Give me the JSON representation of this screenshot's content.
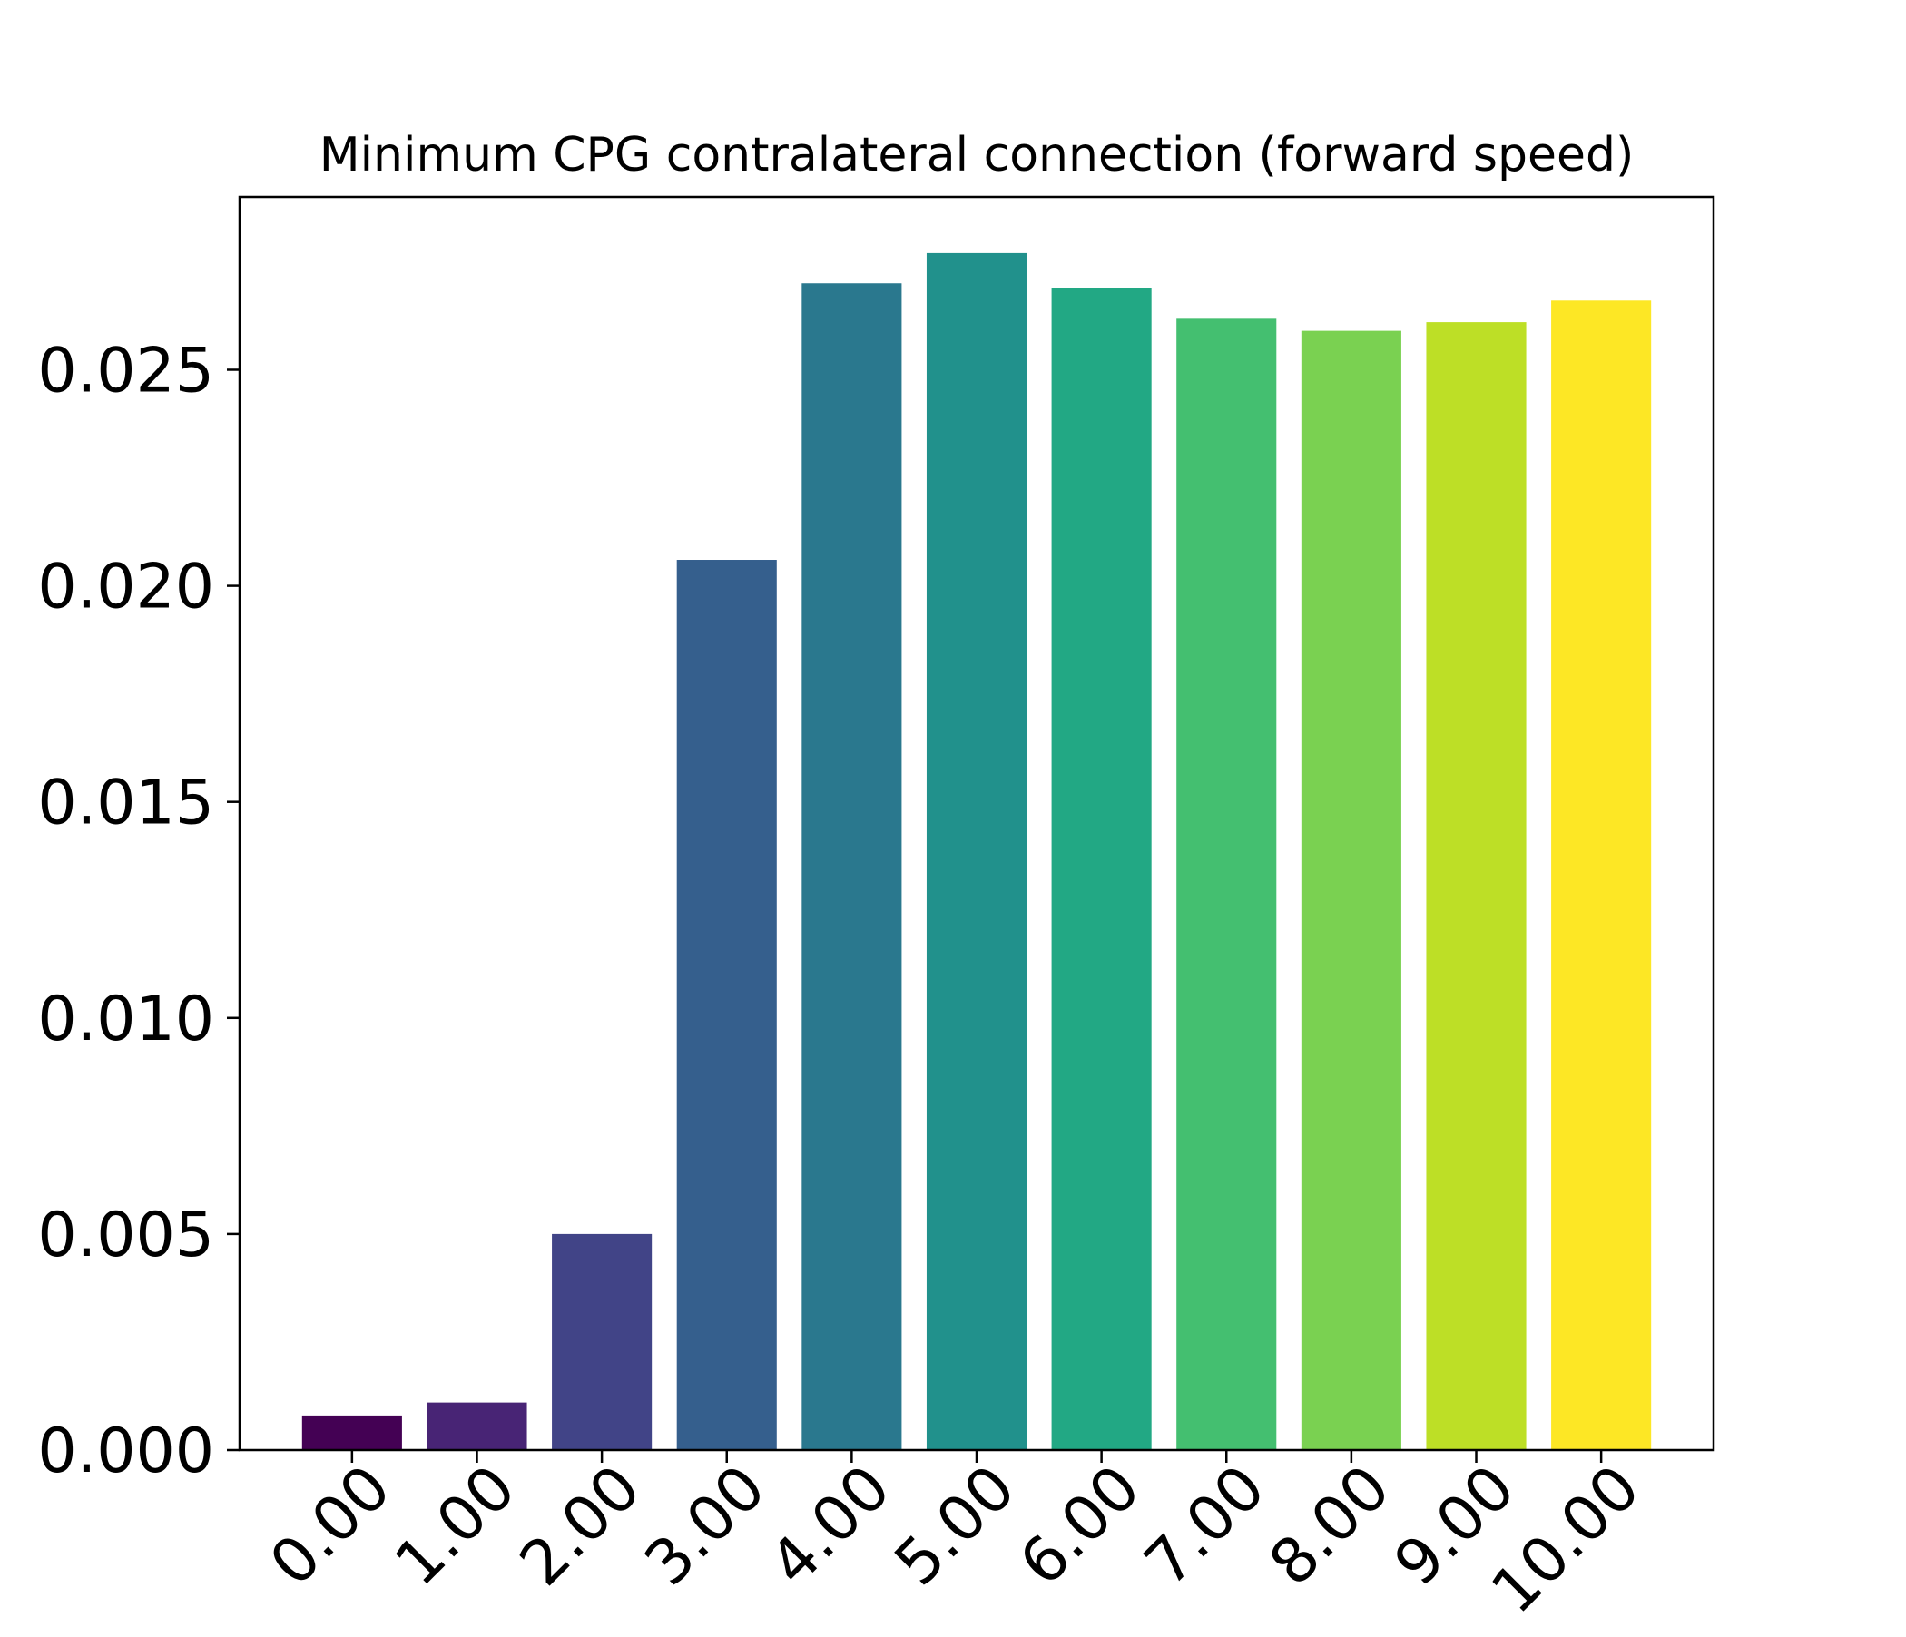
{
  "chart_data": {
    "type": "bar",
    "title": "Minimum CPG contralateral connection (forward speed)",
    "xlabel": "",
    "ylabel": "",
    "categories": [
      "0.00",
      "1.00",
      "2.00",
      "3.00",
      "4.00",
      "5.00",
      "6.00",
      "7.00",
      "8.00",
      "9.00",
      "10.00"
    ],
    "values": [
      0.0008,
      0.0011,
      0.005,
      0.0206,
      0.027,
      0.0277,
      0.0269,
      0.0262,
      0.0259,
      0.0261,
      0.0266
    ],
    "colors": [
      "#440154",
      "#482475",
      "#414487",
      "#355f8d",
      "#2a788e",
      "#21918c",
      "#22a884",
      "#44bf70",
      "#7ad151",
      "#bddf26",
      "#fde725"
    ],
    "yticks": [
      "0.000",
      "0.005",
      "0.010",
      "0.015",
      "0.020",
      "0.025"
    ],
    "ylim": [
      0,
      0.029
    ],
    "grid": false,
    "legend": "none"
  }
}
